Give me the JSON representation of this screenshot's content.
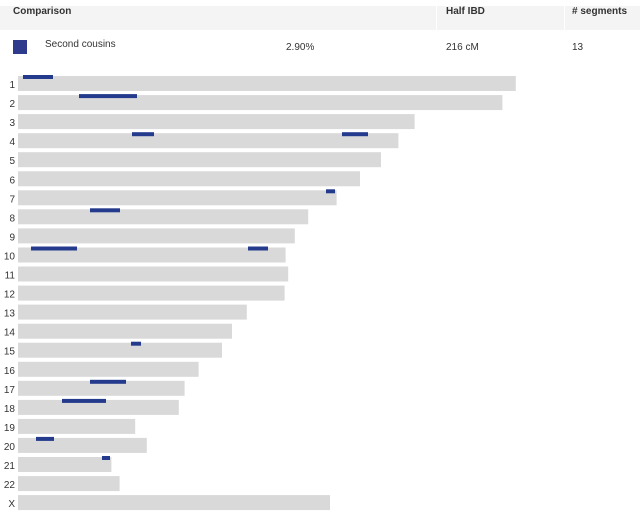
{
  "table": {
    "headers": {
      "comparison": "Comparison",
      "half_ibd": "Half IBD",
      "segments": "# segments"
    },
    "row": {
      "label": "Second cousins",
      "percent": "2.90%",
      "half_ibd": "216 cM",
      "segments": "13",
      "color": "#2e3a8c"
    }
  },
  "chart_data": {
    "type": "bar",
    "track_color": "#d9d9d9",
    "segment_color": "#243a8c",
    "chromosomes": [
      {
        "label": "1",
        "length": 248.9,
        "segments": [
          [
            2.5,
            17.5
          ]
        ]
      },
      {
        "label": "2",
        "length": 242.2,
        "segments": [
          [
            30.5,
            59.5
          ]
        ]
      },
      {
        "label": "3",
        "length": 198.3,
        "segments": []
      },
      {
        "label": "4",
        "length": 190.2,
        "segments": [
          [
            57.0,
            68.0
          ],
          [
            162.0,
            175.0
          ]
        ]
      },
      {
        "label": "5",
        "length": 181.5,
        "segments": []
      },
      {
        "label": "6",
        "length": 171.0,
        "segments": []
      },
      {
        "label": "7",
        "length": 159.3,
        "segments": [
          [
            154.0,
            158.5
          ]
        ]
      },
      {
        "label": "8",
        "length": 145.1,
        "segments": [
          [
            36.0,
            51.0
          ]
        ]
      },
      {
        "label": "9",
        "length": 138.4,
        "segments": []
      },
      {
        "label": "10",
        "length": 133.8,
        "segments": [
          [
            6.5,
            29.5
          ],
          [
            115.0,
            125.0
          ]
        ]
      },
      {
        "label": "11",
        "length": 135.1,
        "segments": []
      },
      {
        "label": "12",
        "length": 133.3,
        "segments": []
      },
      {
        "label": "13",
        "length": 114.4,
        "segments": []
      },
      {
        "label": "14",
        "length": 107.0,
        "segments": []
      },
      {
        "label": "15",
        "length": 102.0,
        "segments": [
          [
            56.5,
            61.5
          ]
        ]
      },
      {
        "label": "16",
        "length": 90.3,
        "segments": []
      },
      {
        "label": "17",
        "length": 83.3,
        "segments": [
          [
            36.0,
            54.0
          ]
        ]
      },
      {
        "label": "18",
        "length": 80.4,
        "segments": [
          [
            22.0,
            44.0
          ]
        ]
      },
      {
        "label": "19",
        "length": 58.6,
        "segments": []
      },
      {
        "label": "20",
        "length": 64.4,
        "segments": [
          [
            9.0,
            18.0
          ]
        ]
      },
      {
        "label": "21",
        "length": 46.7,
        "segments": [
          [
            42.0,
            46.0
          ]
        ]
      },
      {
        "label": "22",
        "length": 50.8,
        "segments": []
      },
      {
        "label": "X",
        "length": 156.0,
        "segments": []
      }
    ]
  }
}
